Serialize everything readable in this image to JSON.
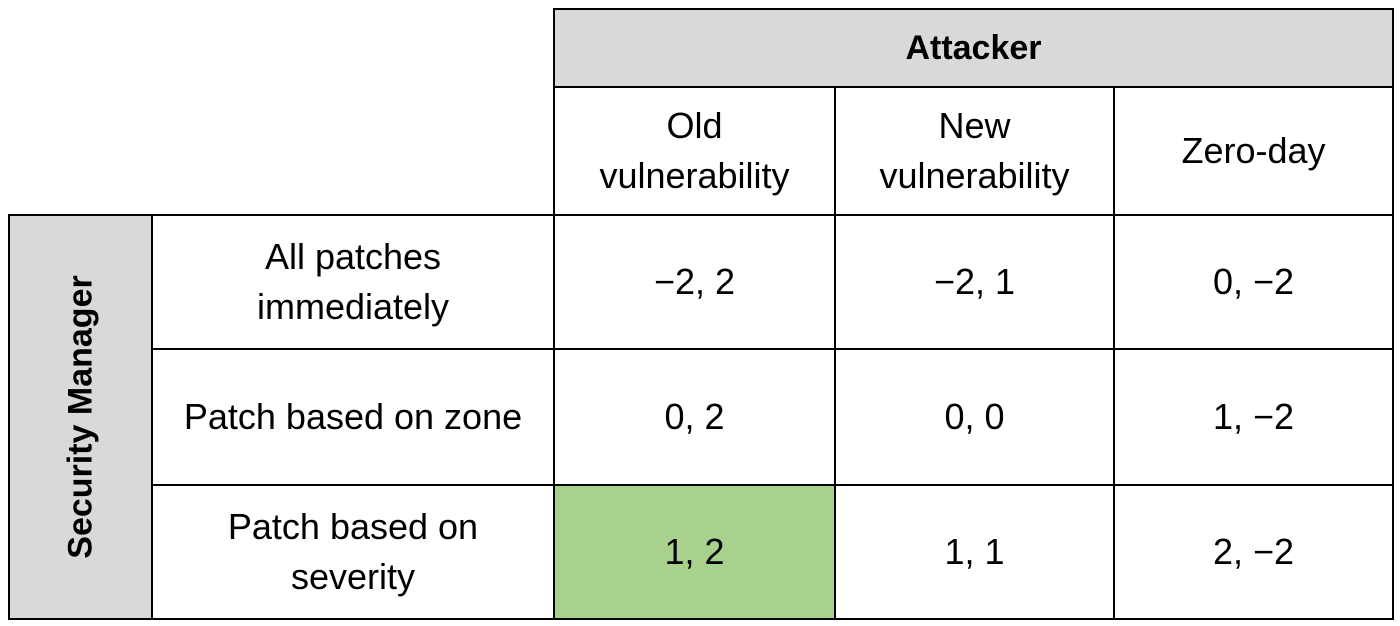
{
  "column_player": "Attacker",
  "row_player": "Security Manager",
  "columns": [
    "Old\nvulnerability",
    "New\nvulnerability",
    "Zero-day"
  ],
  "rows": [
    {
      "label": "All patches\nimmediately",
      "cells": [
        "−2, 2",
        "−2, 1",
        "0, −2"
      ]
    },
    {
      "label": "Patch based on zone",
      "cells": [
        "0, 2",
        "0, 0",
        "1, −2"
      ]
    },
    {
      "label": "Patch based on\nseverity",
      "cells": [
        "1, 2",
        "1, 1",
        "2, −2"
      ]
    }
  ],
  "highlight": {
    "row": 2,
    "col": 0,
    "color": "#a9d18e"
  }
}
